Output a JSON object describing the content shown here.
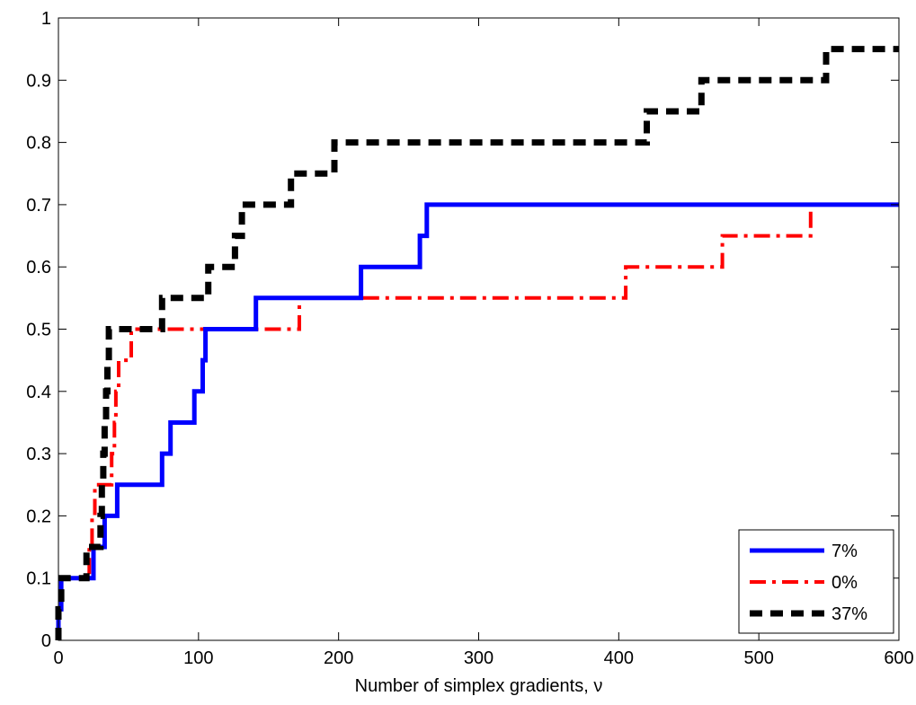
{
  "chart_data": {
    "type": "line",
    "step": true,
    "xlabel": "Number of simplex gradients, ν",
    "ylabel": "",
    "title": "",
    "xlim": [
      0,
      600
    ],
    "ylim": [
      0,
      1
    ],
    "x_ticks": [
      "0",
      "100",
      "200",
      "300",
      "400",
      "500",
      "600"
    ],
    "y_ticks": [
      "0",
      "0.1",
      "0.2",
      "0.3",
      "0.4",
      "0.5",
      "0.6",
      "0.7",
      "0.8",
      "0.9",
      "1"
    ],
    "grid": false,
    "legend_position": "bottom-right",
    "series": [
      {
        "name": "7%",
        "color": "#0000ff",
        "style": "solid",
        "points": [
          [
            0,
            0
          ],
          [
            0,
            0.05
          ],
          [
            2,
            0.05
          ],
          [
            2,
            0.1
          ],
          [
            25,
            0.1
          ],
          [
            25,
            0.15
          ],
          [
            33,
            0.15
          ],
          [
            33,
            0.2
          ],
          [
            42,
            0.2
          ],
          [
            42,
            0.25
          ],
          [
            74,
            0.25
          ],
          [
            74,
            0.3
          ],
          [
            80,
            0.3
          ],
          [
            80,
            0.35
          ],
          [
            97,
            0.35
          ],
          [
            97,
            0.4
          ],
          [
            103,
            0.4
          ],
          [
            103,
            0.45
          ],
          [
            105,
            0.45
          ],
          [
            105,
            0.5
          ],
          [
            141,
            0.5
          ],
          [
            141,
            0.55
          ],
          [
            216,
            0.55
          ],
          [
            216,
            0.6
          ],
          [
            258,
            0.6
          ],
          [
            258,
            0.65
          ],
          [
            263,
            0.65
          ],
          [
            263,
            0.7
          ],
          [
            600,
            0.7
          ]
        ]
      },
      {
        "name": "0%",
        "color": "#ff0000",
        "style": "dashdot",
        "points": [
          [
            0,
            0
          ],
          [
            0,
            0.05
          ],
          [
            2,
            0.05
          ],
          [
            2,
            0.1
          ],
          [
            22,
            0.1
          ],
          [
            22,
            0.15
          ],
          [
            24,
            0.15
          ],
          [
            24,
            0.2
          ],
          [
            26,
            0.2
          ],
          [
            26,
            0.25
          ],
          [
            38,
            0.25
          ],
          [
            38,
            0.3
          ],
          [
            40,
            0.3
          ],
          [
            40,
            0.35
          ],
          [
            41,
            0.35
          ],
          [
            41,
            0.4
          ],
          [
            43,
            0.4
          ],
          [
            43,
            0.45
          ],
          [
            52,
            0.45
          ],
          [
            52,
            0.5
          ],
          [
            172,
            0.5
          ],
          [
            172,
            0.55
          ],
          [
            405,
            0.55
          ],
          [
            405,
            0.6
          ],
          [
            474,
            0.6
          ],
          [
            474,
            0.65
          ],
          [
            537,
            0.65
          ],
          [
            537,
            0.7
          ],
          [
            600,
            0.7
          ]
        ]
      },
      {
        "name": "37%",
        "color": "#000000",
        "style": "dashed",
        "points": [
          [
            0,
            0
          ],
          [
            0,
            0.05
          ],
          [
            2,
            0.05
          ],
          [
            2,
            0.1
          ],
          [
            20,
            0.1
          ],
          [
            20,
            0.15
          ],
          [
            30,
            0.15
          ],
          [
            30,
            0.2
          ],
          [
            31,
            0.2
          ],
          [
            31,
            0.25
          ],
          [
            32,
            0.25
          ],
          [
            32,
            0.3
          ],
          [
            33,
            0.3
          ],
          [
            33,
            0.35
          ],
          [
            34,
            0.35
          ],
          [
            34,
            0.4
          ],
          [
            35,
            0.4
          ],
          [
            35,
            0.45
          ],
          [
            36,
            0.45
          ],
          [
            36,
            0.5
          ],
          [
            74,
            0.5
          ],
          [
            74,
            0.55
          ],
          [
            107,
            0.55
          ],
          [
            107,
            0.6
          ],
          [
            126,
            0.6
          ],
          [
            126,
            0.65
          ],
          [
            131,
            0.65
          ],
          [
            131,
            0.7
          ],
          [
            166,
            0.7
          ],
          [
            166,
            0.75
          ],
          [
            197,
            0.75
          ],
          [
            197,
            0.8
          ],
          [
            420,
            0.8
          ],
          [
            420,
            0.85
          ],
          [
            459,
            0.85
          ],
          [
            459,
            0.9
          ],
          [
            548,
            0.9
          ],
          [
            548,
            0.95
          ],
          [
            600,
            0.95
          ]
        ]
      }
    ]
  }
}
